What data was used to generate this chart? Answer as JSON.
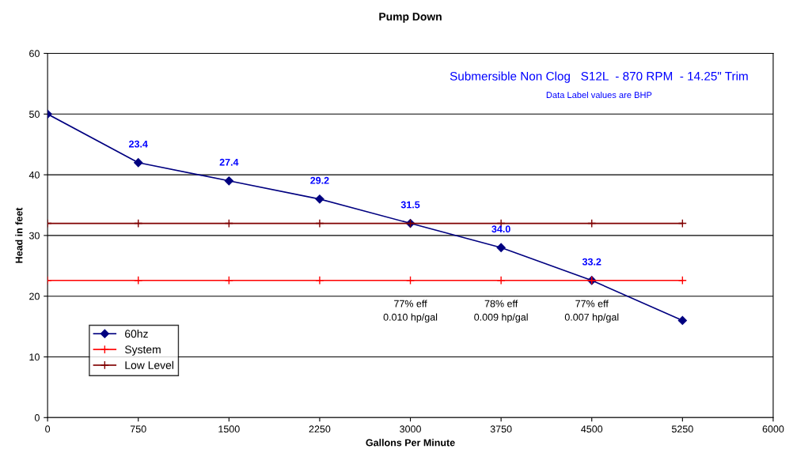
{
  "chart_data": {
    "type": "line",
    "title": "Pump Down",
    "xlabel": "Gallons Per Minute",
    "ylabel": "Head in feet",
    "x": [
      0,
      750,
      1500,
      2250,
      3000,
      3750,
      4500,
      5250
    ],
    "series": [
      {
        "name": "60hz",
        "color": "#000080",
        "marker": "diamond",
        "values": [
          50,
          42,
          39,
          36,
          32,
          28,
          22.6,
          16
        ]
      },
      {
        "name": "System",
        "color": "#ff0000",
        "marker": "cross",
        "values": [
          22.6,
          22.6,
          22.6,
          22.6,
          22.6,
          22.6,
          22.6,
          22.6
        ]
      },
      {
        "name": "Low Level",
        "color": "#800000",
        "marker": "cross",
        "values": [
          32,
          32,
          32,
          32,
          32,
          32,
          32,
          32
        ]
      }
    ],
    "annotations": [
      "Submersible Non Clog   S12L  - 870 RPM  - 14.25\" Trim",
      "Data Label values are BHP",
      "77% eff\n0.010 hp/gal",
      "78% eff\n0.009 hp/gal",
      "77% eff\n0.007 hp/gal",
      {
        "text": "23.4",
        "x": 750,
        "y": 42
      },
      {
        "text": "27.4",
        "x": 1500,
        "y": 39
      },
      {
        "text": "29.2",
        "x": 2250,
        "y": 36
      },
      {
        "text": "31.5",
        "x": 3000,
        "y": 32
      },
      {
        "text": "34.0",
        "x": 3750,
        "y": 28
      },
      {
        "text": "33.2",
        "x": 4500,
        "y": 22.6
      }
    ],
    "xlim": [
      0,
      6000
    ],
    "xticks": [
      0,
      750,
      1500,
      2250,
      3000,
      3750,
      4500,
      5250,
      6000
    ],
    "ylim": [
      0,
      60
    ],
    "yticks": [
      0,
      10,
      20,
      30,
      40,
      50,
      60
    ],
    "grid": "y",
    "legend": "bottom left"
  }
}
